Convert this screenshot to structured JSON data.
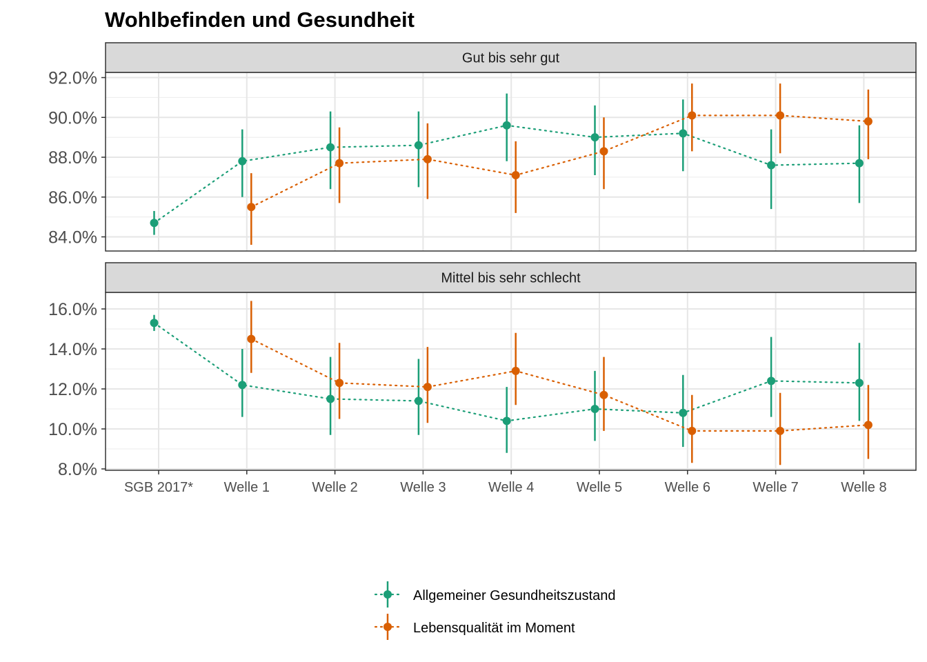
{
  "chart_data": {
    "type": "line",
    "title": "Wohlbefinden und Gesundheit",
    "xlabel": "",
    "ylabel": "",
    "categories": [
      "SGB 2017*",
      "Welle 1",
      "Welle 2",
      "Welle 3",
      "Welle 4",
      "Welle 5",
      "Welle 6",
      "Welle 7",
      "Welle 8"
    ],
    "grid": true,
    "legend_position": "bottom",
    "error_bars": true,
    "line_style": "dotted",
    "colors": {
      "Allgemeiner Gesundheitszustand": "#1b9e77",
      "Lebensqualität im Moment": "#d95f02"
    },
    "panels": [
      {
        "strip": "Gut bis sehr gut",
        "ylim": [
          83.5,
          93.5
        ],
        "yticks": [
          84,
          86,
          88,
          90,
          92
        ],
        "ytick_labels": [
          "84.0%",
          "86.0%",
          "88.0%",
          "90.0%",
          "92.0%"
        ],
        "series": [
          {
            "name": "Allgemeiner Gesundheitszustand",
            "values": [
              84.7,
              87.8,
              88.5,
              88.6,
              89.6,
              89.0,
              89.2,
              87.6,
              87.7
            ],
            "lower": [
              84.1,
              86.0,
              86.4,
              86.5,
              87.8,
              87.1,
              87.3,
              85.4,
              85.7
            ],
            "upper": [
              85.3,
              89.4,
              90.3,
              90.3,
              91.2,
              90.6,
              90.9,
              89.4,
              89.6
            ]
          },
          {
            "name": "Lebensqualität im Moment",
            "values": [
              null,
              85.5,
              87.7,
              87.9,
              87.1,
              88.3,
              90.1,
              90.1,
              89.8
            ],
            "lower": [
              null,
              83.6,
              85.7,
              85.9,
              85.2,
              86.4,
              88.3,
              88.2,
              87.9
            ],
            "upper": [
              null,
              87.2,
              89.5,
              89.7,
              88.8,
              90.0,
              91.7,
              91.7,
              91.4
            ]
          }
        ]
      },
      {
        "strip": "Mittel bis sehr schlecht",
        "ylim": [
          7.9,
          16.8
        ],
        "yticks": [
          8,
          10,
          12,
          14,
          16
        ],
        "ytick_labels": [
          "8.0%",
          "10.0%",
          "12.0%",
          "14.0%",
          "16.0%"
        ],
        "series": [
          {
            "name": "Allgemeiner Gesundheitszustand",
            "values": [
              15.3,
              12.2,
              11.5,
              11.4,
              10.4,
              11.0,
              10.8,
              12.4,
              12.3
            ],
            "lower": [
              14.9,
              10.6,
              9.7,
              9.7,
              8.8,
              9.4,
              9.1,
              10.6,
              10.4
            ],
            "upper": [
              15.7,
              14.0,
              13.6,
              13.5,
              12.1,
              12.9,
              12.7,
              14.6,
              14.3
            ]
          },
          {
            "name": "Lebensqualität im Moment",
            "values": [
              null,
              14.5,
              12.3,
              12.1,
              12.9,
              11.7,
              9.9,
              9.9,
              10.2
            ],
            "lower": [
              null,
              12.8,
              10.5,
              10.3,
              11.2,
              9.9,
              8.3,
              8.2,
              8.5
            ],
            "upper": [
              null,
              16.4,
              14.3,
              14.1,
              14.8,
              13.6,
              11.7,
              11.8,
              12.2
            ]
          }
        ]
      }
    ]
  }
}
